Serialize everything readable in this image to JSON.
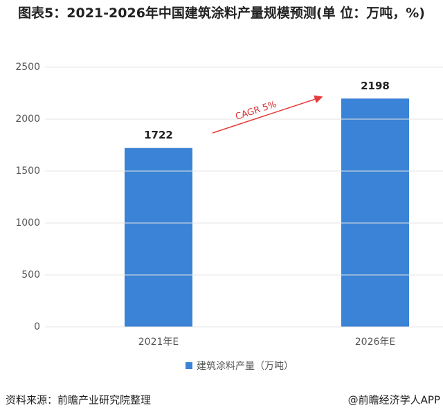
{
  "chart_data": {
    "type": "bar",
    "title": "图表5：2021-2026年中国建筑涂料产量规模预测(单 位：万吨，%)",
    "categories": [
      "2021年E",
      "2026年E"
    ],
    "series": [
      {
        "name": "建筑涂料产量（万吨）",
        "color": "#3a83d6",
        "values": [
          1722,
          2198
        ]
      }
    ],
    "ylim": [
      0,
      2500
    ],
    "yticks": [
      0,
      500,
      1000,
      1500,
      2000,
      2500
    ],
    "grid": true,
    "annotation": "CAGR 5%",
    "source": "资料来源：前瞻产业研究院整理",
    "credit": "@前瞻经济学人APP"
  }
}
